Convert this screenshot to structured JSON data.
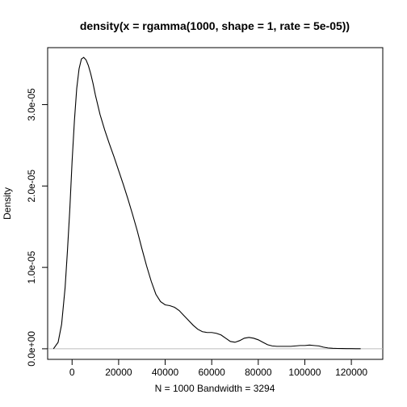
{
  "chart_data": {
    "type": "line",
    "title": "density(x = rgamma(1000, shape = 1, rate = 5e-05))",
    "xlabel": "N = 1000   Bandwidth = 3294",
    "ylabel": "Density",
    "xlim": [
      -10500,
      133500
    ],
    "ylim": [
      -1.3e-06,
      3.7e-05
    ],
    "x_ticks": [
      0,
      20000,
      40000,
      60000,
      80000,
      100000,
      120000
    ],
    "x_tick_labels": [
      "0",
      "20000",
      "40000",
      "60000",
      "80000",
      "100000",
      "120000"
    ],
    "y_ticks": [
      0,
      1e-05,
      2e-05,
      3e-05
    ],
    "y_tick_labels": [
      "0.0e+00",
      "1.0e-05",
      "2.0e-05",
      "3.0e-05"
    ],
    "zero_line": true,
    "grid": false,
    "series": [
      {
        "x": [
          -8000,
          -6000,
          -4500,
          -3000,
          -2000,
          -1000,
          0,
          1000,
          2000,
          3000,
          4000,
          5000,
          6000,
          7000,
          8000,
          9000,
          10000,
          12000,
          14000,
          16000,
          18000,
          20000,
          22000,
          24000,
          26000,
          28000,
          30000,
          32000,
          34000,
          36000,
          38000,
          40000,
          42000,
          44000,
          46000,
          48000,
          50000,
          52000,
          54000,
          56000,
          58000,
          60000,
          62000,
          64000,
          66000,
          68000,
          70000,
          72000,
          74000,
          76000,
          78000,
          80000,
          82000,
          84000,
          86000,
          88000,
          90000,
          92000,
          94000,
          96000,
          98000,
          100000,
          102000,
          104000,
          106000,
          108000,
          110000,
          112000,
          114000,
          116000,
          118000,
          120000,
          122000,
          124000
        ],
        "y": [
          0.0,
          8e-07,
          3e-06,
          7.5e-06,
          1.2e-05,
          1.7e-05,
          2.3e-05,
          2.8e-05,
          3.2e-05,
          3.44e-05,
          3.56e-05,
          3.58e-05,
          3.55e-05,
          3.48e-05,
          3.38e-05,
          3.26e-05,
          3.12e-05,
          2.88e-05,
          2.69e-05,
          2.52e-05,
          2.36e-05,
          2.19e-05,
          2.02e-05,
          1.84e-05,
          1.65e-05,
          1.45e-05,
          1.23e-05,
          1.02e-05,
          8.3e-06,
          6.7e-06,
          5.8e-06,
          5.4e-06,
          5.3e-06,
          5.1e-06,
          4.7e-06,
          4.1e-06,
          3.5e-06,
          2.9e-06,
          2.4e-06,
          2.1e-06,
          2e-06,
          2e-06,
          1.9e-06,
          1.7e-06,
          1.3e-06,
          9e-07,
          8e-07,
          1e-06,
          1.3e-06,
          1.4e-06,
          1.3e-06,
          1.1e-06,
          8e-07,
          5e-07,
          3.5e-07,
          3e-07,
          3e-07,
          3e-07,
          3e-07,
          3.5e-07,
          4e-07,
          4e-07,
          4.5e-07,
          4e-07,
          3.5e-07,
          2e-07,
          1e-07,
          6e-08,
          4e-08,
          3e-08,
          2e-08,
          2e-08,
          1e-08,
          5e-09
        ]
      }
    ]
  }
}
